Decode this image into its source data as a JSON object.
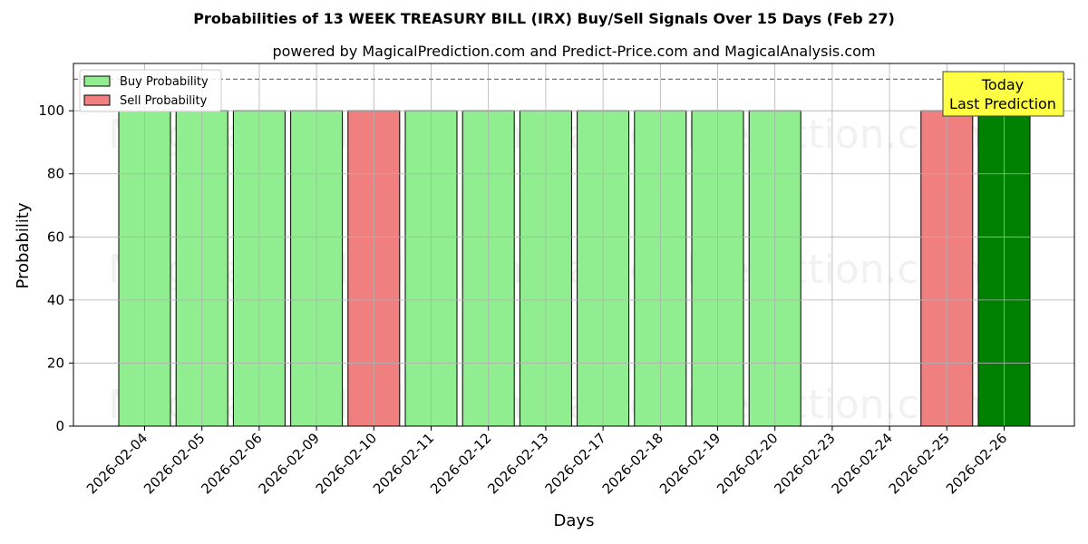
{
  "chart_data": {
    "type": "bar",
    "title": "Probabilities of 13 WEEK TREASURY BILL (IRX) Buy/Sell Signals Over 15 Days (Feb 27)",
    "subtitle": "powered by MagicalPrediction.com and Predict-Price.com and MagicalAnalysis.com",
    "xlabel": "Days",
    "ylabel": "Probability",
    "ylim": [
      0,
      115
    ],
    "yticks": [
      0,
      20,
      40,
      60,
      80,
      100
    ],
    "reference_line": 110,
    "grid": true,
    "legend_position": "top-left",
    "categories": [
      "2026-02-04",
      "2026-02-05",
      "2026-02-06",
      "2026-02-09",
      "2026-02-10",
      "2026-02-11",
      "2026-02-12",
      "2026-02-13",
      "2026-02-17",
      "2026-02-18",
      "2026-02-19",
      "2026-02-20",
      "2026-02-23",
      "2026-02-24",
      "2026-02-25",
      "2026-02-26"
    ],
    "series": [
      {
        "name": "Buy Probability",
        "color": "#90ee90",
        "values": [
          100,
          100,
          100,
          100,
          null,
          100,
          100,
          100,
          100,
          100,
          100,
          100,
          null,
          null,
          null,
          null
        ]
      },
      {
        "name": "Sell Probability",
        "color": "#f08080",
        "values": [
          null,
          null,
          null,
          null,
          100,
          null,
          null,
          null,
          null,
          null,
          null,
          null,
          null,
          null,
          100,
          null
        ]
      }
    ],
    "highlight": {
      "category": "2026-02-26",
      "value": 100,
      "color": "#008000"
    },
    "annotation": {
      "lines": [
        "Today",
        "Last Prediction"
      ],
      "color": "#ffff44"
    },
    "watermarks": [
      "MagicalAnalysis.com",
      "MagicalPrediction.com"
    ]
  }
}
